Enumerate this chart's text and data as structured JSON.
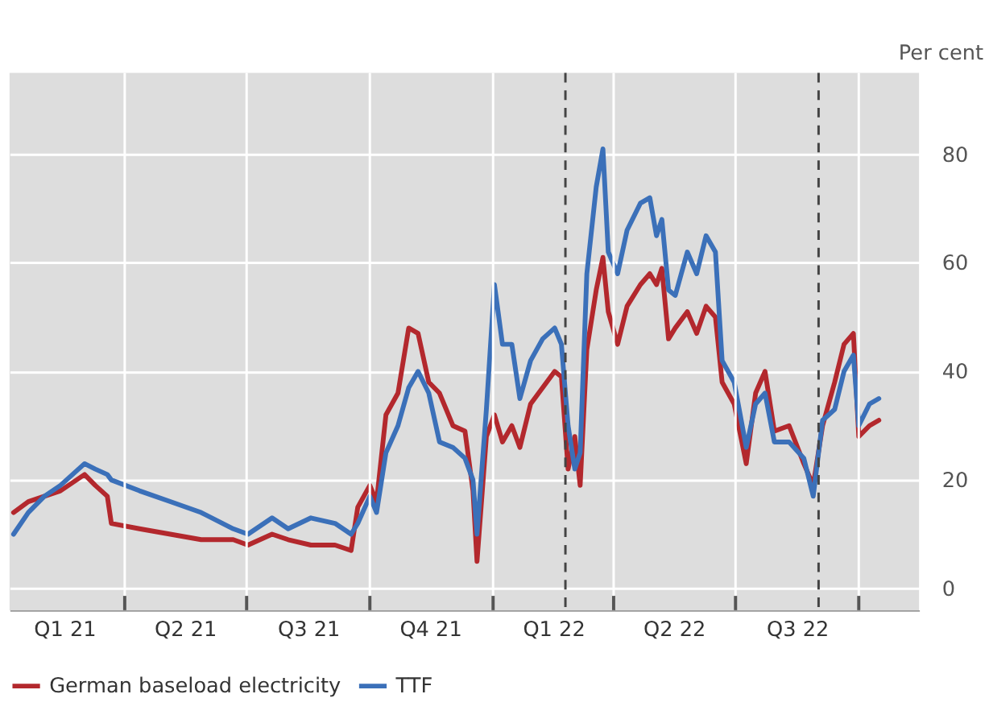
{
  "chart_data": {
    "type": "line",
    "ylabel": "Per cent",
    "x": [
      "2021-01-08",
      "2021-01-19",
      "2021-01-31",
      "2021-02-12",
      "2021-03-02",
      "2021-03-10",
      "2021-03-19",
      "2021-03-22",
      "2021-04-12",
      "2021-05-05",
      "2021-05-28",
      "2021-06-21",
      "2021-07-02",
      "2021-07-20",
      "2021-08-01",
      "2021-08-18",
      "2021-09-05",
      "2021-09-17",
      "2021-09-22",
      "2021-10-01",
      "2021-10-06",
      "2021-10-13",
      "2021-10-22",
      "2021-10-30",
      "2021-11-06",
      "2021-11-14",
      "2021-11-22",
      "2021-12-02",
      "2021-12-11",
      "2021-12-17",
      "2021-12-20",
      "2021-12-27",
      "2022-01-02",
      "2022-01-08",
      "2022-01-15",
      "2022-01-21",
      "2022-01-29",
      "2022-02-07",
      "2022-02-16",
      "2022-02-21",
      "2022-02-26",
      "2022-03-03",
      "2022-03-07",
      "2022-03-12",
      "2022-03-19",
      "2022-03-24",
      "2022-03-28",
      "2022-04-04",
      "2022-04-11",
      "2022-04-21",
      "2022-04-28",
      "2022-05-03",
      "2022-05-07",
      "2022-05-12",
      "2022-05-17",
      "2022-05-26",
      "2022-06-02",
      "2022-06-09",
      "2022-06-16",
      "2022-06-21",
      "2022-06-30",
      "2022-07-09",
      "2022-07-16",
      "2022-07-23",
      "2022-07-30",
      "2022-08-10",
      "2022-08-21",
      "2022-08-28",
      "2022-09-04",
      "2022-09-13",
      "2022-09-20",
      "2022-09-27",
      "2022-10-01",
      "2022-10-09",
      "2022-10-16"
    ],
    "series": [
      {
        "name": "German baseload electricity",
        "color": "#b3282d",
        "values": [
          14,
          16,
          17,
          18,
          21,
          19,
          17,
          12,
          11,
          10,
          9,
          9,
          8,
          10,
          9,
          8,
          8,
          7,
          15,
          19,
          16,
          32,
          36,
          48,
          47,
          38,
          36,
          30,
          29,
          18,
          5,
          28,
          32,
          27,
          30,
          26,
          34,
          37,
          40,
          39,
          22,
          28,
          19,
          44,
          55,
          61,
          51,
          45,
          52,
          56,
          58,
          56,
          59,
          46,
          48,
          51,
          47,
          52,
          50,
          38,
          34,
          23,
          36,
          40,
          29,
          30,
          23,
          19,
          30,
          38,
          45,
          47,
          28,
          30,
          31
        ]
      },
      {
        "name": "TTF",
        "color": "#3b70b9",
        "values": [
          10,
          14,
          17,
          19,
          23,
          22,
          21,
          20,
          18,
          16,
          14,
          11,
          10,
          13,
          11,
          13,
          12,
          10,
          12,
          17,
          14,
          25,
          30,
          37,
          40,
          36,
          27,
          26,
          24,
          20,
          10,
          33,
          56,
          45,
          45,
          35,
          42,
          46,
          48,
          45,
          30,
          22,
          25,
          58,
          74,
          81,
          62,
          58,
          66,
          71,
          72,
          65,
          68,
          55,
          54,
          62,
          58,
          65,
          62,
          42,
          38,
          26,
          34,
          36,
          27,
          27,
          24,
          17,
          31,
          33,
          40,
          43,
          30,
          34,
          35
        ]
      }
    ],
    "xlim": [
      "2021-01-05",
      "2022-11-15"
    ],
    "xticks": [
      {
        "value": "2021-04-01",
        "label": null
      },
      {
        "value": "2021-07-01",
        "label": null
      },
      {
        "value": "2021-10-01",
        "label": null
      },
      {
        "value": "2022-01-01",
        "label": null
      },
      {
        "value": "2022-04-01",
        "label": null
      },
      {
        "value": "2022-07-01",
        "label": null
      },
      {
        "value": "2022-10-01",
        "label": null
      },
      {
        "value": "2021-02-15",
        "label": "Q1 21"
      },
      {
        "value": "2021-05-16",
        "label": "Q2 21"
      },
      {
        "value": "2021-08-16",
        "label": "Q3 21"
      },
      {
        "value": "2021-11-15",
        "label": "Q4 21"
      },
      {
        "value": "2022-02-15",
        "label": "Q1 22"
      },
      {
        "value": "2022-05-16",
        "label": "Q2 22"
      },
      {
        "value": "2022-08-16",
        "label": "Q3 22"
      }
    ],
    "ylim": [
      -4,
      95
    ],
    "yticks": [
      0,
      20,
      40,
      60,
      80
    ],
    "ref_lines": [
      {
        "axis": "x",
        "value": "2022-02-24",
        "color": "#444444",
        "line_style": "dashed"
      },
      {
        "axis": "x",
        "value": "2022-09-01",
        "color": "#444444",
        "line_style": "dashed"
      }
    ],
    "grid": true,
    "legend": "bottom",
    "line_style": "solid",
    "marker": "none"
  }
}
